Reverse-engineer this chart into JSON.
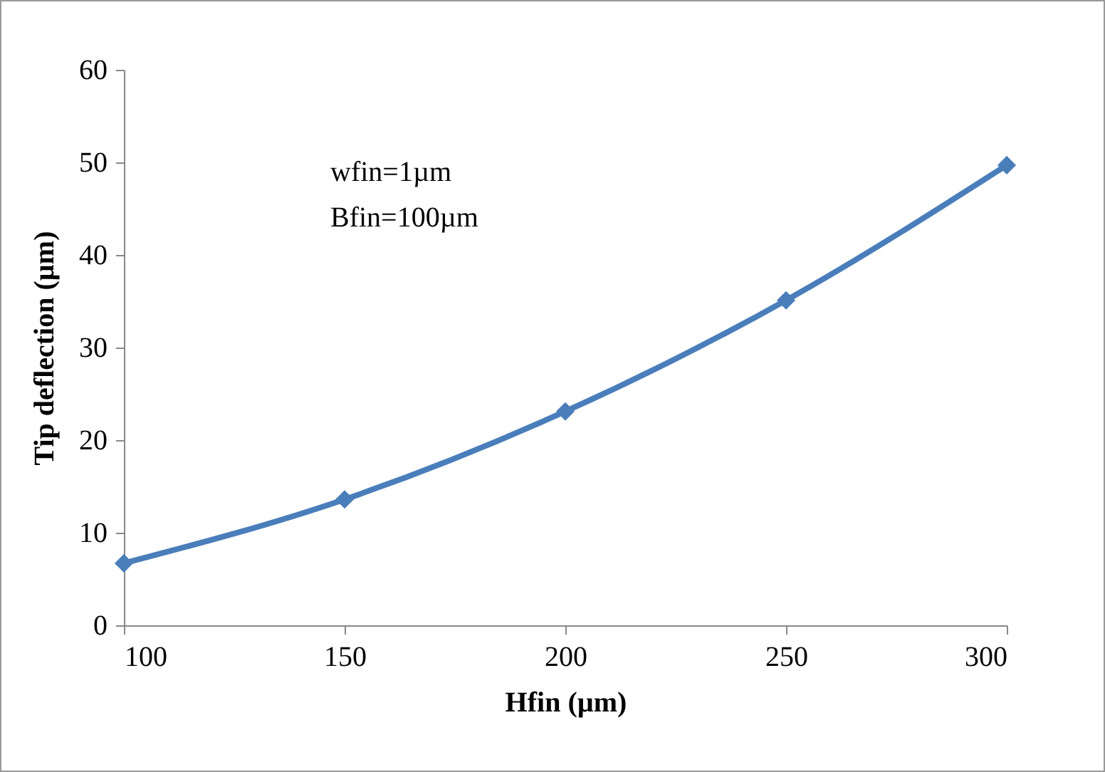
{
  "chart_data": {
    "type": "line",
    "xlabel": "Hfin (µm)",
    "ylabel": "Tip deflection (µm)",
    "x": [
      100,
      150,
      200,
      250,
      300
    ],
    "series": [
      {
        "color": "#4a7ebb",
        "values": [
          6.7,
          13.6,
          23.1,
          35.1,
          49.7
        ]
      }
    ],
    "xlim": [
      100,
      300
    ],
    "xticks": [
      100,
      150,
      200,
      250,
      300
    ],
    "ylim": [
      0,
      60
    ],
    "yticks": [
      0,
      10,
      20,
      30,
      40,
      50,
      60
    ],
    "grid": false,
    "marker": "diamond",
    "line_style": "solid",
    "annotations": [
      "wfin=1µm",
      "Bfin=100µm"
    ]
  }
}
